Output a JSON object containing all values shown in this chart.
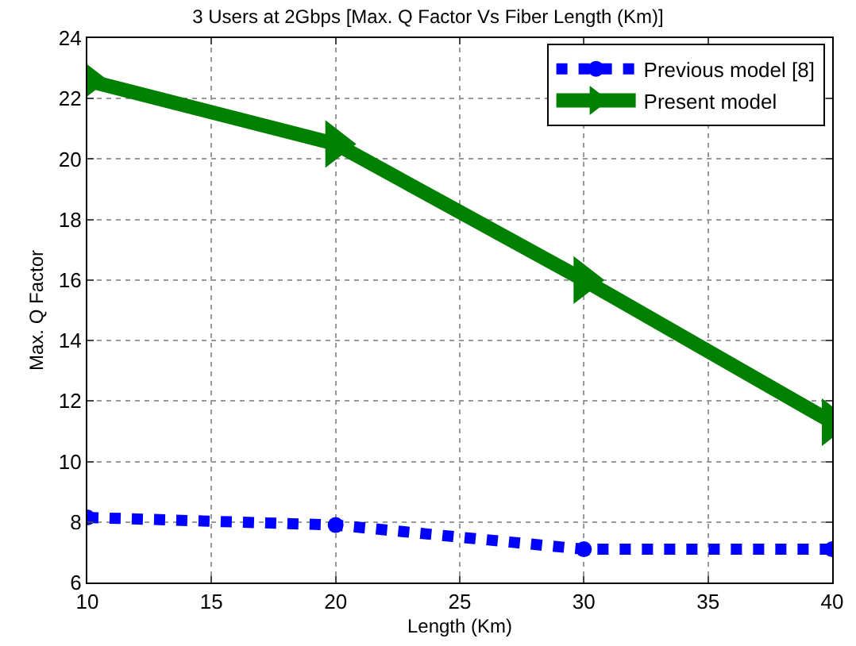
{
  "chart_data": {
    "type": "line",
    "title": "3 Users at 2Gbps [Max. Q Factor Vs Fiber Length (Km)]",
    "xlabel": "Length (Km)",
    "ylabel": "Max. Q Factor",
    "x": [
      10,
      20,
      30,
      40
    ],
    "series": [
      {
        "name": "Previous model [8]",
        "color": "#0000ff",
        "values": [
          8.15,
          7.9,
          7.1,
          7.1
        ],
        "marker": "circle",
        "line_style": "dotted"
      },
      {
        "name": "Present model",
        "color": "#008000",
        "values": [
          22.6,
          20.5,
          16.0,
          11.3
        ],
        "marker": "triangle",
        "line_style": "solid"
      }
    ],
    "xlim": [
      10,
      40
    ],
    "xticks": [
      10,
      15,
      20,
      25,
      30,
      35,
      40
    ],
    "ylim": [
      6,
      24
    ],
    "yticks": [
      6,
      8,
      10,
      12,
      14,
      16,
      18,
      20,
      22,
      24
    ],
    "grid": true,
    "legend": "top right"
  }
}
